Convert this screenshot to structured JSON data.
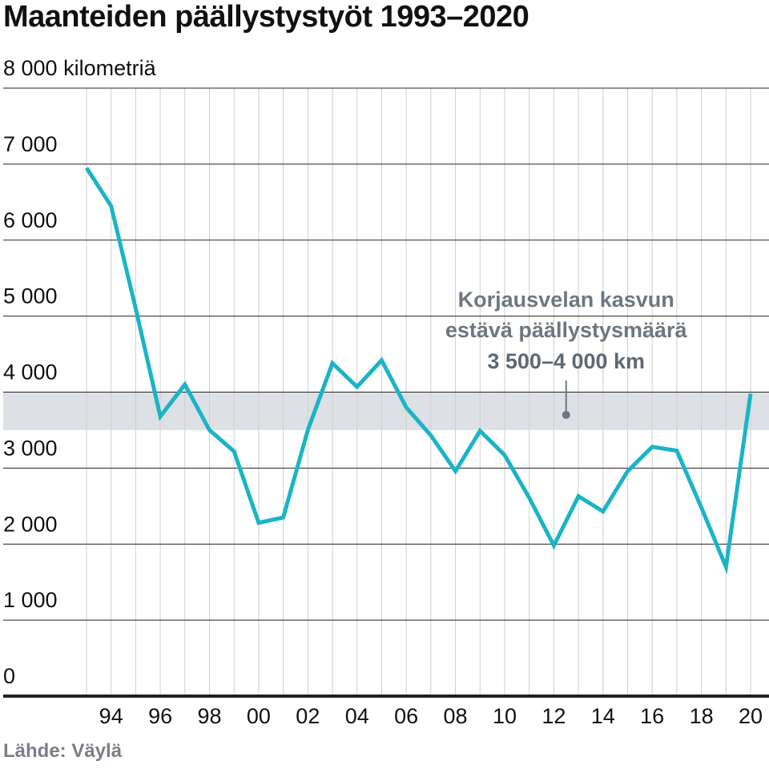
{
  "header": {
    "title": "Maanteiden päällystystyöt 1993–2020"
  },
  "footer": {
    "source": "Lähde: Väylä"
  },
  "colors": {
    "line": "#1bb4c6",
    "band": "#dde0e4",
    "grid": "#222222",
    "vgrid": "#cfcfcf",
    "annotation": "#6e7780"
  },
  "chart_data": {
    "type": "line",
    "title": "Maanteiden päällystystyöt 1993–2020",
    "ylabel": "kilometriä",
    "ylim": [
      0,
      8000
    ],
    "yticks": [
      0,
      1000,
      2000,
      3000,
      4000,
      5000,
      6000,
      7000,
      8000
    ],
    "ytick_labels": [
      "0",
      "1 000",
      "2 000",
      "3 000",
      "4 000",
      "5 000",
      "6 000",
      "7 000",
      "8 000 kilometriä"
    ],
    "xlim": [
      1993,
      2020
    ],
    "xticks": [
      1994,
      1996,
      1998,
      2000,
      2002,
      2004,
      2006,
      2008,
      2010,
      2012,
      2014,
      2016,
      2018,
      2020
    ],
    "xtick_labels": [
      "94",
      "96",
      "98",
      "00",
      "02",
      "04",
      "06",
      "08",
      "10",
      "12",
      "14",
      "16",
      "18",
      "20"
    ],
    "grid": {
      "horizontal": true,
      "vertical_per_year": true
    },
    "band": {
      "from": 3500,
      "to": 4000
    },
    "annotation": {
      "lines": [
        "Korjausvelan kasvun",
        "estävä päällystysmäärä",
        "3 500–4 000 km"
      ],
      "x": 2012.5,
      "y": 3700
    },
    "series": [
      {
        "x": [
          1993,
          1994,
          1995,
          1996,
          1997,
          1998,
          1999,
          2000,
          2001,
          2002,
          2003,
          2004,
          2005,
          2006,
          2007,
          2008,
          2009,
          2010,
          2011,
          2012,
          2013,
          2014,
          2015,
          2016,
          2017,
          2018,
          2019,
          2020
        ],
        "values": [
          6950,
          6450,
          5100,
          3680,
          4100,
          3500,
          3220,
          2280,
          2350,
          3500,
          4380,
          4070,
          4420,
          3800,
          3430,
          2960,
          3490,
          3170,
          2610,
          1980,
          2630,
          2430,
          2960,
          3280,
          3230,
          2480,
          1700,
          3980
        ]
      }
    ]
  }
}
